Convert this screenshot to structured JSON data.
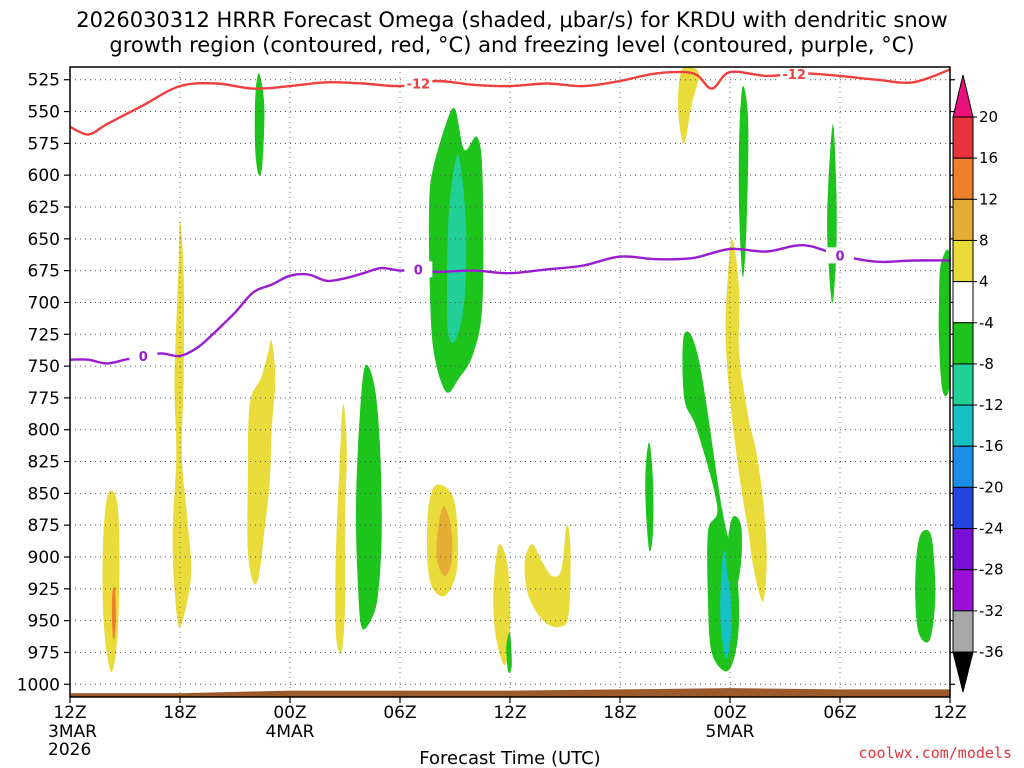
{
  "title_line1": "2026030312 HRRR Forecast Omega (shaded, μbar/s) for KRDU with dendritic snow",
  "title_line2": "growth region (contoured, red, °C) and freezing level (contoured, purple, °C)",
  "credit": "coolwx.com/models",
  "chart_data": {
    "type": "heatmap",
    "title": "2026030312 HRRR Forecast Omega (shaded, μbar/s) for KRDU with dendritic snow growth region (contoured, red, °C) and freezing level (contoured, purple, °C)",
    "xlabel": "Forecast Time (UTC)",
    "ylabel": "",
    "x_range_hours": [
      0,
      48
    ],
    "y_range_mb": [
      515,
      1010
    ],
    "y_ticks": [
      525,
      550,
      575,
      600,
      625,
      650,
      675,
      700,
      725,
      750,
      775,
      800,
      825,
      850,
      875,
      900,
      925,
      950,
      975,
      1000
    ],
    "x_ticks": [
      {
        "h": 0,
        "label": "12Z",
        "sub": [
          "3MAR",
          "2026"
        ]
      },
      {
        "h": 6,
        "label": "18Z",
        "sub": []
      },
      {
        "h": 12,
        "label": "00Z",
        "sub": [
          "4MAR"
        ]
      },
      {
        "h": 18,
        "label": "06Z",
        "sub": []
      },
      {
        "h": 24,
        "label": "12Z",
        "sub": []
      },
      {
        "h": 30,
        "label": "18Z",
        "sub": []
      },
      {
        "h": 36,
        "label": "00Z",
        "sub": [
          "5MAR"
        ]
      },
      {
        "h": 42,
        "label": "06Z",
        "sub": []
      },
      {
        "h": 48,
        "label": "12Z",
        "sub": []
      }
    ],
    "colorbar": {
      "labels": [
        "20",
        "16",
        "12",
        "8",
        "4",
        "-4",
        "-8",
        "-12",
        "-16",
        "-20",
        "-24",
        "-28",
        "-32",
        "-36"
      ],
      "colors": [
        "#e8333d",
        "#ef7e2a",
        "#e5ad35",
        "#e8db3a",
        "#ffffff",
        "#1cc41c",
        "#22cf96",
        "#16c1c4",
        "#1c8de8",
        "#2546e0",
        "#7a10d8",
        "#9c0ed6",
        "#a8a8a8"
      ],
      "top_color": "#e8127a",
      "bottom_color": "#000000"
    },
    "omega_areas": [
      {
        "color": "#e8db3a",
        "pts": [
          [
            2.0,
            855
          ],
          [
            2.3,
            848
          ],
          [
            2.6,
            860
          ],
          [
            2.7,
            900
          ],
          [
            2.6,
            960
          ],
          [
            2.3,
            990
          ],
          [
            2.0,
            975
          ],
          [
            1.8,
            940
          ],
          [
            1.8,
            890
          ]
        ]
      },
      {
        "color": "#ef7e2a",
        "pts": [
          [
            2.3,
            930
          ],
          [
            2.45,
            925
          ],
          [
            2.5,
            950
          ],
          [
            2.4,
            965
          ],
          [
            2.3,
            955
          ]
        ]
      },
      {
        "color": "#e8db3a",
        "pts": [
          [
            6.0,
            635
          ],
          [
            6.2,
            680
          ],
          [
            6.2,
            760
          ],
          [
            6.1,
            820
          ],
          [
            6.4,
            870
          ],
          [
            6.6,
            915
          ],
          [
            6.0,
            955
          ],
          [
            5.7,
            925
          ],
          [
            5.6,
            880
          ],
          [
            5.8,
            820
          ],
          [
            5.7,
            760
          ],
          [
            5.9,
            680
          ]
        ]
      },
      {
        "color": "#e8db3a",
        "pts": [
          [
            11.0,
            730
          ],
          [
            11.2,
            760
          ],
          [
            11.0,
            800
          ],
          [
            10.9,
            840
          ],
          [
            10.6,
            880
          ],
          [
            10.3,
            915
          ],
          [
            10.0,
            920
          ],
          [
            9.7,
            895
          ],
          [
            9.7,
            840
          ],
          [
            9.8,
            780
          ],
          [
            10.4,
            760
          ],
          [
            10.8,
            740
          ]
        ]
      },
      {
        "color": "#e8db3a",
        "pts": [
          [
            14.9,
            780
          ],
          [
            15.1,
            815
          ],
          [
            15.0,
            870
          ],
          [
            15.0,
            940
          ],
          [
            14.8,
            975
          ],
          [
            14.5,
            960
          ],
          [
            14.5,
            900
          ],
          [
            14.7,
            830
          ]
        ]
      },
      {
        "color": "#1cc41c",
        "pts": [
          [
            16.1,
            750
          ],
          [
            16.6,
            765
          ],
          [
            16.9,
            810
          ],
          [
            17.0,
            880
          ],
          [
            16.8,
            930
          ],
          [
            16.4,
            950
          ],
          [
            15.9,
            955
          ],
          [
            15.7,
            920
          ],
          [
            15.6,
            860
          ],
          [
            15.8,
            790
          ]
        ]
      },
      {
        "color": "#1cc41c",
        "pts": [
          [
            19.8,
            595
          ],
          [
            20.5,
            560
          ],
          [
            21.0,
            548
          ],
          [
            21.5,
            580
          ],
          [
            22.2,
            570
          ],
          [
            22.5,
            600
          ],
          [
            22.5,
            700
          ],
          [
            22.0,
            740
          ],
          [
            21.2,
            760
          ],
          [
            20.5,
            770
          ],
          [
            19.8,
            735
          ],
          [
            19.6,
            670
          ],
          [
            19.6,
            620
          ]
        ]
      },
      {
        "color": "#22cf96",
        "pts": [
          [
            21.2,
            585
          ],
          [
            21.6,
            640
          ],
          [
            21.5,
            700
          ],
          [
            21.0,
            730
          ],
          [
            20.6,
            720
          ],
          [
            20.6,
            650
          ],
          [
            20.8,
            610
          ]
        ]
      },
      {
        "color": "#e8db3a",
        "pts": [
          [
            20.1,
            843
          ],
          [
            20.8,
            850
          ],
          [
            21.1,
            870
          ],
          [
            21.1,
            910
          ],
          [
            20.5,
            930
          ],
          [
            19.8,
            925
          ],
          [
            19.5,
            905
          ],
          [
            19.5,
            870
          ],
          [
            19.7,
            850
          ]
        ]
      },
      {
        "color": "#e5ad35",
        "pts": [
          [
            20.4,
            860
          ],
          [
            20.8,
            878
          ],
          [
            20.8,
            905
          ],
          [
            20.4,
            915
          ],
          [
            20.0,
            900
          ],
          [
            20.1,
            875
          ]
        ]
      },
      {
        "color": "#e8db3a",
        "pts": [
          [
            23.4,
            890
          ],
          [
            23.9,
            910
          ],
          [
            24.0,
            960
          ],
          [
            23.7,
            985
          ],
          [
            23.2,
            960
          ],
          [
            23.1,
            925
          ]
        ]
      },
      {
        "color": "#e8db3a",
        "pts": [
          [
            25.2,
            890
          ],
          [
            25.8,
            905
          ],
          [
            26.3,
            915
          ],
          [
            26.8,
            910
          ],
          [
            27.1,
            875
          ],
          [
            27.3,
            895
          ],
          [
            27.2,
            945
          ],
          [
            26.7,
            955
          ],
          [
            25.8,
            950
          ],
          [
            25.0,
            930
          ],
          [
            24.8,
            905
          ]
        ]
      },
      {
        "color": "#1cc41c",
        "pts": [
          [
            33.5,
            725
          ],
          [
            34.3,
            745
          ],
          [
            35.6,
            865
          ],
          [
            36.3,
            905
          ],
          [
            36.5,
            945
          ],
          [
            36.3,
            975
          ],
          [
            35.8,
            990
          ],
          [
            35.0,
            975
          ],
          [
            34.8,
            935
          ],
          [
            34.8,
            880
          ],
          [
            35.3,
            860
          ],
          [
            34.2,
            800
          ],
          [
            33.5,
            775
          ]
        ]
      },
      {
        "color": "#16c1c4",
        "pts": [
          [
            35.7,
            895
          ],
          [
            36.0,
            925
          ],
          [
            36.1,
            955
          ],
          [
            35.8,
            980
          ],
          [
            35.5,
            955
          ],
          [
            35.5,
            920
          ]
        ]
      },
      {
        "color": "#e8db3a",
        "pts": [
          [
            36.1,
            650
          ],
          [
            36.5,
            690
          ],
          [
            36.5,
            740
          ],
          [
            37.0,
            790
          ],
          [
            37.4,
            815
          ],
          [
            37.8,
            855
          ],
          [
            38.0,
            900
          ],
          [
            37.8,
            935
          ],
          [
            37.3,
            910
          ],
          [
            37.0,
            880
          ],
          [
            36.6,
            845
          ],
          [
            36.1,
            790
          ],
          [
            35.8,
            740
          ],
          [
            35.8,
            700
          ]
        ]
      },
      {
        "color": "#1cc41c",
        "pts": [
          [
            41.6,
            560
          ],
          [
            41.8,
            610
          ],
          [
            41.8,
            660
          ],
          [
            41.6,
            700
          ],
          [
            41.4,
            675
          ],
          [
            41.3,
            630
          ]
        ]
      },
      {
        "color": "#1cc41c",
        "pts": [
          [
            46.5,
            880
          ],
          [
            47.0,
            885
          ],
          [
            47.2,
            930
          ],
          [
            46.9,
            965
          ],
          [
            46.3,
            960
          ],
          [
            46.1,
            930
          ],
          [
            46.2,
            895
          ]
        ]
      },
      {
        "color": "#1cc41c",
        "pts": [
          [
            47.5,
            670
          ],
          [
            48.0,
            665
          ],
          [
            48.0,
            760
          ],
          [
            47.6,
            770
          ],
          [
            47.4,
            730
          ],
          [
            47.4,
            700
          ]
        ]
      },
      {
        "color": "#1cc41c",
        "pts": [
          [
            10.3,
            520
          ],
          [
            10.6,
            545
          ],
          [
            10.5,
            590
          ],
          [
            10.3,
            600
          ],
          [
            10.1,
            580
          ],
          [
            10.1,
            540
          ]
        ]
      },
      {
        "color": "#1cc41c",
        "pts": [
          [
            36.7,
            530
          ],
          [
            37.0,
            560
          ],
          [
            36.9,
            640
          ],
          [
            36.7,
            680
          ],
          [
            36.5,
            630
          ],
          [
            36.5,
            570
          ]
        ]
      },
      {
        "color": "#e8db3a",
        "pts": [
          [
            33.5,
            515
          ],
          [
            34.3,
            520
          ],
          [
            33.9,
            545
          ],
          [
            33.5,
            575
          ],
          [
            33.2,
            555
          ],
          [
            33.2,
            530
          ]
        ]
      },
      {
        "color": "#1cc41c",
        "pts": [
          [
            36.1,
            870
          ],
          [
            36.6,
            875
          ],
          [
            36.6,
            905
          ],
          [
            36.2,
            930
          ],
          [
            35.8,
            905
          ]
        ]
      },
      {
        "color": "#1cc41c",
        "pts": [
          [
            31.6,
            810
          ],
          [
            31.8,
            840
          ],
          [
            31.8,
            880
          ],
          [
            31.6,
            895
          ],
          [
            31.4,
            860
          ],
          [
            31.4,
            830
          ]
        ]
      },
      {
        "color": "#1cc41c",
        "pts": [
          [
            24.0,
            960
          ],
          [
            24.1,
            985
          ],
          [
            23.9,
            990
          ],
          [
            23.8,
            970
          ]
        ]
      }
    ],
    "dgz_contour": {
      "label": "-12",
      "color": "#ef3f3f",
      "hours": [
        0,
        1,
        2,
        4,
        6,
        8,
        10,
        12,
        14,
        16,
        18,
        20,
        22,
        24,
        26,
        28,
        30,
        32,
        34,
        35,
        36,
        38,
        40,
        42,
        44,
        46,
        48
      ],
      "pressure": [
        562,
        568,
        560,
        545,
        530,
        528,
        532,
        530,
        527,
        528,
        530,
        526,
        529,
        530,
        528,
        530,
        526,
        520,
        520,
        532,
        519,
        522,
        520,
        522,
        525,
        527,
        517
      ]
    },
    "freezing_contour": {
      "label": "0",
      "color": "#9b1bd0",
      "hours": [
        0,
        1,
        2,
        3,
        4,
        5,
        6,
        7,
        8,
        9,
        10,
        11,
        12,
        13,
        14,
        15,
        16,
        17,
        18,
        19,
        20,
        22,
        24,
        26,
        28,
        30,
        32,
        34,
        36,
        38,
        40,
        42,
        44,
        46,
        48
      ],
      "pressure": [
        745,
        745,
        748,
        745,
        742,
        740,
        742,
        735,
        722,
        708,
        692,
        686,
        679,
        678,
        683,
        681,
        677,
        673,
        675,
        674,
        676,
        675,
        677,
        674,
        671,
        664,
        666,
        665,
        658,
        660,
        655,
        663,
        668,
        667,
        667
      ]
    },
    "terrain_color": "#9c5a2a"
  }
}
